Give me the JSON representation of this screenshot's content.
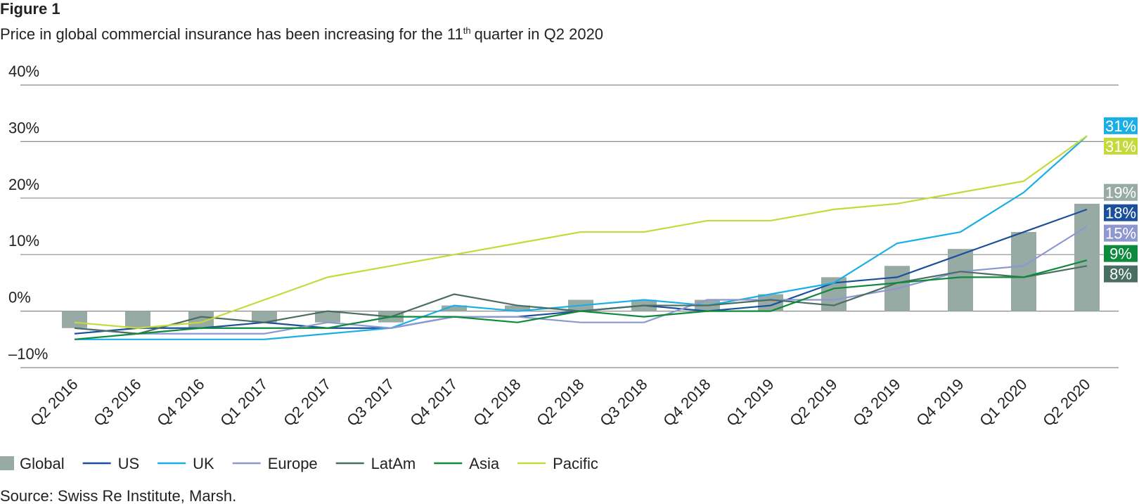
{
  "chart_data": {
    "type": "bar-line",
    "title": "Figure 1",
    "subtitle": {
      "text": "Price in global commercial insurance has been increasing for the 11",
      "sup": "th",
      "rest": "quarter in Q2 2020"
    },
    "source": "Source: Swiss Re Institute, Marsh.",
    "categories": [
      "Q2 2016",
      "Q3 2016",
      "Q4 2016",
      "Q1 2017",
      "Q2 2017",
      "Q3 2017",
      "Q4 2017",
      "Q1 2018",
      "Q2 2018",
      "Q3 2018",
      "Q4 2018",
      "Q1 2019",
      "Q2 2019",
      "Q3 2019",
      "Q4 2019",
      "Q1 2020",
      "Q2 2020"
    ],
    "ylim": [
      -10,
      40
    ],
    "yticks": [
      {
        "value": -10,
        "label": "–10%"
      },
      {
        "value": 0,
        "label": "0%"
      },
      {
        "value": 10,
        "label": "10%"
      },
      {
        "value": 20,
        "label": "20%"
      },
      {
        "value": 30,
        "label": "30%"
      },
      {
        "value": 40,
        "label": "40%"
      }
    ],
    "grid": true,
    "series": [
      {
        "name": "Global",
        "kind": "bar",
        "color": "#97aba4",
        "values": [
          -3,
          -3,
          -3,
          -2,
          -2,
          -2,
          1,
          1,
          2,
          2,
          2,
          3,
          6,
          8,
          11,
          14,
          19
        ],
        "value_labels": [
          null,
          null,
          null,
          null,
          null,
          null,
          null,
          null,
          null,
          null,
          null,
          null,
          null,
          null,
          null,
          null,
          "19%"
        ]
      },
      {
        "name": "US",
        "kind": "line",
        "color": "#1b4f9c",
        "values": [
          -4,
          -3,
          -3,
          -2,
          -3,
          -3,
          -1,
          -1,
          0,
          1,
          0,
          1,
          5,
          6,
          10,
          14,
          18
        ],
        "value_labels": [
          null,
          null,
          null,
          null,
          null,
          null,
          null,
          null,
          null,
          null,
          null,
          null,
          null,
          null,
          null,
          null,
          "18%"
        ]
      },
      {
        "name": "UK",
        "kind": "line",
        "color": "#1aaee6",
        "values": [
          -5,
          -5,
          -5,
          -5,
          -4,
          -3,
          1,
          0,
          1,
          2,
          1,
          3,
          5,
          12,
          14,
          21,
          31
        ],
        "value_labels": [
          null,
          null,
          null,
          null,
          null,
          null,
          null,
          null,
          null,
          null,
          null,
          null,
          null,
          null,
          null,
          null,
          "31%"
        ]
      },
      {
        "name": "Europe",
        "kind": "line",
        "color": "#8e98cf",
        "values": [
          -3,
          -4,
          -4,
          -4,
          -2,
          -3,
          -1,
          -1,
          -2,
          -2,
          2,
          2,
          2,
          4,
          7,
          8,
          15
        ],
        "value_labels": [
          null,
          null,
          null,
          null,
          null,
          null,
          null,
          null,
          null,
          null,
          null,
          null,
          null,
          null,
          null,
          null,
          "15%"
        ]
      },
      {
        "name": "LatAm",
        "kind": "line",
        "color": "#4b6e62",
        "values": [
          -3,
          -4,
          -1,
          -2,
          0,
          -1,
          3,
          1,
          0,
          1,
          1,
          2,
          1,
          5,
          7,
          6,
          8
        ],
        "value_labels": [
          null,
          null,
          null,
          null,
          null,
          null,
          null,
          null,
          null,
          null,
          null,
          null,
          null,
          null,
          null,
          null,
          "8%"
        ]
      },
      {
        "name": "Asia",
        "kind": "line",
        "color": "#0d8a3c",
        "values": [
          -5,
          -4,
          -3,
          -3,
          -3,
          -1,
          -1,
          -2,
          0,
          -1,
          0,
          0,
          4,
          5,
          6,
          6,
          9
        ],
        "value_labels": [
          null,
          null,
          null,
          null,
          null,
          null,
          null,
          null,
          null,
          null,
          null,
          null,
          null,
          null,
          null,
          null,
          "9%"
        ]
      },
      {
        "name": "Pacific",
        "kind": "line",
        "color": "#c5d93a",
        "values": [
          -2,
          -3,
          -2,
          2,
          6,
          8,
          10,
          12,
          14,
          14,
          16,
          16,
          18,
          19,
          21,
          23,
          31
        ],
        "value_labels": [
          null,
          null,
          null,
          null,
          null,
          null,
          null,
          null,
          null,
          null,
          null,
          null,
          null,
          null,
          null,
          null,
          "31%"
        ]
      }
    ]
  }
}
